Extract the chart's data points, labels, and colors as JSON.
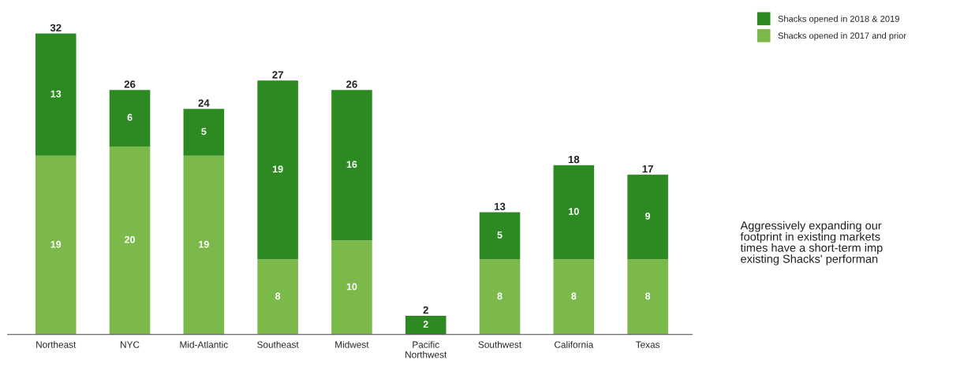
{
  "chart_data": {
    "type": "bar",
    "stacked": true,
    "categories": [
      "Northeast",
      "NYC",
      "Mid-Atlantic",
      "Southeast",
      "Midwest",
      "Pacific\nNorthwest",
      "Southwest",
      "California",
      "Texas"
    ],
    "series": [
      {
        "name": "Shacks opened in 2017 and prior",
        "color": "#7cb94b",
        "values": [
          19,
          20,
          19,
          8,
          10,
          0,
          8,
          8,
          8
        ],
        "value_labels": [
          "19",
          "20",
          "19",
          "8",
          "10",
          null,
          "8",
          "8",
          "8"
        ]
      },
      {
        "name": "Shacks opened in 2018 & 2019",
        "color": "#2d8a22",
        "values": [
          13,
          6,
          5,
          19,
          16,
          2,
          5,
          10,
          9
        ],
        "value_labels": [
          "13",
          "6",
          "5",
          "19",
          "16",
          "2",
          "5",
          "10",
          "9"
        ]
      }
    ],
    "totals": [
      "32",
      "26",
      "24",
      "27",
      "26",
      "2",
      "13",
      "18",
      "17"
    ],
    "legend": "top right",
    "grid": false,
    "annotations": [
      "Aggressively expanding our\nfootprint in existing markets\ntimes have a short-term imp\nexisting Shacks' performan"
    ]
  }
}
